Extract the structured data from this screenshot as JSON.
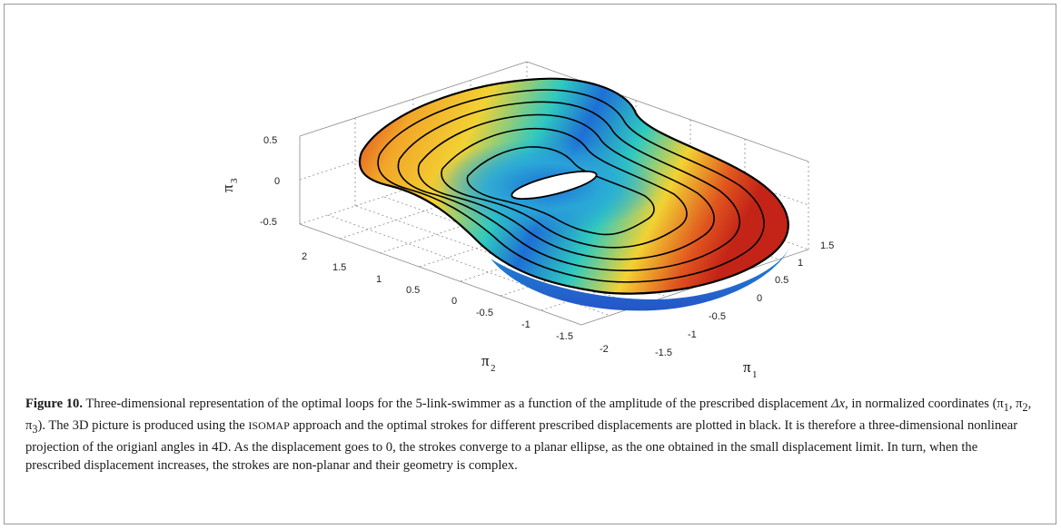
{
  "figure": {
    "label": "Figure 10.",
    "caption_part1": " Three-dimensional representation of the optimal loops for the 5-link-swimmer as a function of the amplitude of the prescribed displacement ",
    "delta_symbol": "Δx",
    "caption_part2": ", in normalized coordinates (π",
    "caption_part3": "). The 3D picture is produced using the ",
    "isomap": "ISOMAP",
    "caption_part4": " approach and the optimal strokes for different prescribed displacements are plotted in black. It is therefore a three-dimensional nonlinear projection of the origianl angles in 4D. As the displacement goes to 0, the strokes converge to a planar ellipse, as the one obtained in the small displacement limit. In turn, when the prescribed displacement increases, the strokes are non-planar and their geometry is complex."
  },
  "plot": {
    "z_ticks": [
      "0.5",
      "0",
      "-0.5"
    ],
    "y_ticks": [
      "2",
      "1.5",
      "1",
      "0.5",
      "0",
      "-0.5",
      "-1",
      "-1.5",
      "-2"
    ],
    "x_ticks": [
      "1.5",
      "1",
      "0.5",
      "0",
      "-0.5",
      "-1",
      "-1.5"
    ],
    "z_label": "π",
    "z_sub": "3",
    "y_label": "π",
    "y_sub": "2",
    "x_label": "π",
    "x_sub": "1",
    "colors": {
      "surface_cool": "#1e6fd6",
      "surface_mid": "#27c7c4",
      "surface_warm": "#f2d233",
      "surface_hot": "#d8301f",
      "loop_lines": "#000000"
    }
  }
}
